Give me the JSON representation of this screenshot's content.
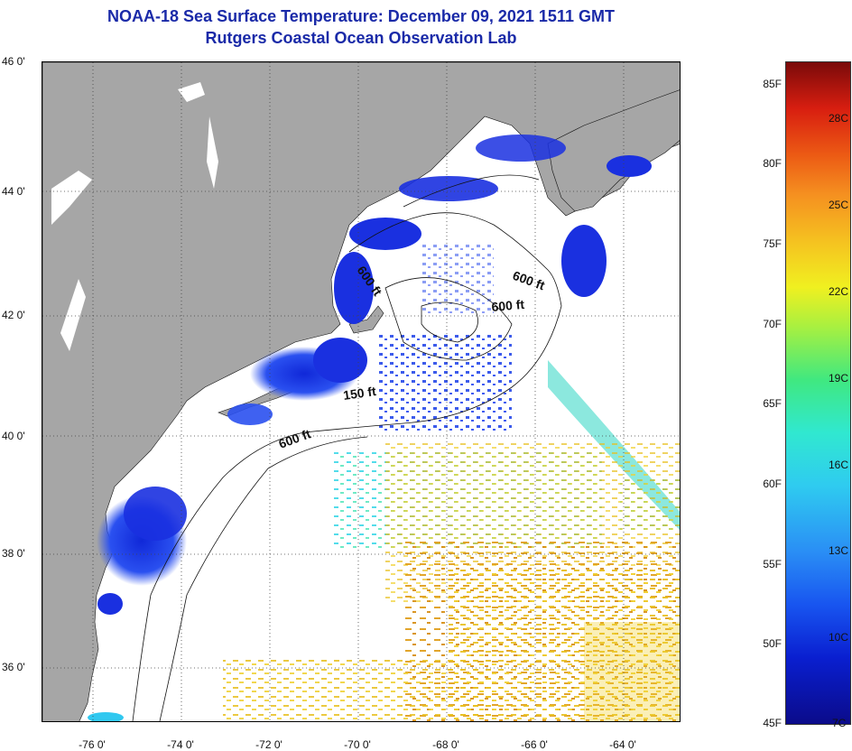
{
  "title": {
    "line1": "NOAA-18 Sea Surface Temperature:  December 09, 2021 1511 GMT",
    "line2": "Rutgers Coastal Ocean Observation Lab"
  },
  "map": {
    "lat_labels": [
      "46 0'",
      "44 0'",
      "42 0'",
      "40 0'",
      "38 0'",
      "36 0'"
    ],
    "lon_labels": [
      "-76 0'",
      "-74 0'",
      "-72 0'",
      "-70 0'",
      "-68 0'",
      "-66 0'",
      "-64 0'"
    ],
    "contour_labels": [
      "600 ft",
      "600 ft",
      "600 ft",
      "150 ft",
      "600 ft"
    ],
    "colors": {
      "land": "#a6a6a6",
      "water_nodata": "#ffffff",
      "cold": "#1a2ee0",
      "warm": "#e8b820"
    }
  },
  "colorbar": {
    "fahrenheit": [
      "85F",
      "80F",
      "75F",
      "70F",
      "65F",
      "60F",
      "55F",
      "50F"
    ],
    "celsius": [
      "28C",
      "25C",
      "22C",
      "19C",
      "16C",
      "13C",
      "10C"
    ],
    "min_f": "45F",
    "min_c": "7C"
  }
}
